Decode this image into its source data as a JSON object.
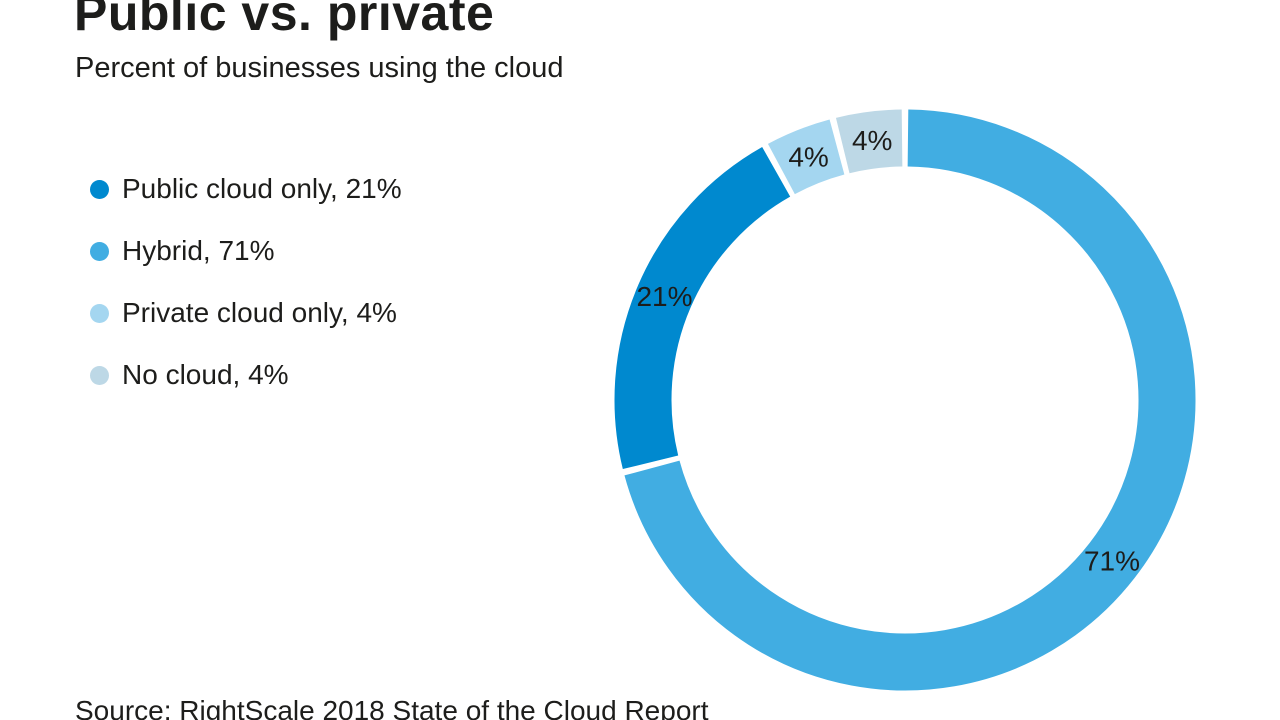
{
  "page": {
    "title": "Public vs. private",
    "subtitle": "Percent of businesses using the cloud",
    "source": "Source: RightScale 2018 State of the Cloud Report"
  },
  "chart_data": {
    "type": "pie",
    "variant": "donut",
    "title": "Public vs. private",
    "subtitle": "Percent of businesses using the cloud",
    "source": "Source: RightScale 2018 State of the Cloud Report",
    "unit": "%",
    "segments": [
      {
        "name": "Public cloud only",
        "value": 21,
        "label": "21%",
        "color": "#0089cf"
      },
      {
        "name": "Hybrid",
        "value": 71,
        "label": "71%",
        "color": "#41ade2"
      },
      {
        "name": "Private cloud only",
        "value": 4,
        "label": "4%",
        "color": "#a4d6f0"
      },
      {
        "name": "No cloud",
        "value": 4,
        "label": "4%",
        "color": "#bdd8e6"
      }
    ],
    "draw_order": [
      "Hybrid",
      "Public cloud only",
      "Private cloud only",
      "No cloud"
    ],
    "start_angle_deg": 0,
    "direction": "clockwise",
    "legend_position": "left",
    "legend": [
      {
        "text": "Public cloud only, 21%",
        "color": "#0089cf"
      },
      {
        "text": "Hybrid, 71%",
        "color": "#41ade2"
      },
      {
        "text": "Private cloud only, 4%",
        "color": "#a4d6f0"
      },
      {
        "text": "No cloud, 4%",
        "color": "#bdd8e6"
      }
    ]
  }
}
